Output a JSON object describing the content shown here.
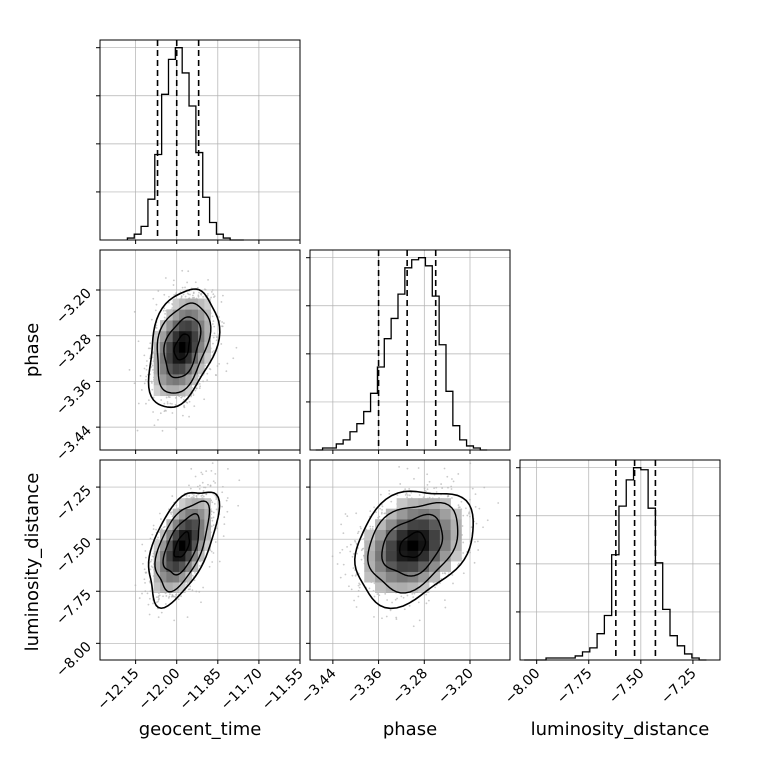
{
  "chart_data": {
    "type": "corner",
    "parameters": [
      "geocent_time",
      "phase",
      "luminosity_distance"
    ],
    "axes": {
      "geocent_time": {
        "range": [
          -12.28,
          -11.55
        ],
        "ticks": [
          -12.15,
          -12.0,
          -11.85,
          -11.7,
          -11.55
        ],
        "tick_labels": [
          "−12.15",
          "−12.00",
          "−11.85",
          "−11.70",
          "−11.55"
        ]
      },
      "phase": {
        "range": [
          -3.48,
          -3.13
        ],
        "ticks": [
          -3.44,
          -3.36,
          -3.28,
          -3.2
        ],
        "tick_labels": [
          "−3.44",
          "−3.36",
          "−3.28",
          "−3.20"
        ]
      },
      "luminosity_distance": {
        "range": [
          -8.08,
          -7.12
        ],
        "ticks": [
          -8.0,
          -7.75,
          -7.5,
          -7.25
        ],
        "tick_labels": [
          "−8.00",
          "−7.75",
          "−7.50",
          "−7.25"
        ]
      }
    },
    "histograms": [
      {
        "param": "geocent_time",
        "bin_edges": [
          -12.18,
          -12.155,
          -12.13,
          -12.105,
          -12.08,
          -12.055,
          -12.03,
          -12.005,
          -11.98,
          -11.955,
          -11.93,
          -11.905,
          -11.88,
          -11.855,
          -11.83,
          -11.805,
          -11.78,
          -11.755
        ],
        "counts": [
          1,
          3,
          7,
          21,
          44,
          75,
          93,
          99,
          86,
          69,
          45,
          22,
          9,
          3,
          1,
          0,
          0
        ],
        "quantiles": [
          -12.07,
          -12.0,
          -11.92
        ]
      },
      {
        "param": "phase",
        "bin_edges": [
          -3.47,
          -3.458,
          -3.446,
          -3.434,
          -3.422,
          -3.41,
          -3.398,
          -3.386,
          -3.374,
          -3.362,
          -3.35,
          -3.338,
          -3.326,
          -3.314,
          -3.302,
          -3.29,
          -3.278,
          -3.266,
          -3.254,
          -3.242,
          -3.23,
          -3.218,
          -3.206,
          -3.194,
          -3.182,
          -3.17
        ],
        "counts": [
          0,
          1,
          1,
          3,
          5,
          9,
          13,
          19,
          28,
          41,
          55,
          65,
          77,
          90,
          94,
          95,
          91,
          76,
          52,
          29,
          12,
          5,
          2,
          1,
          0
        ],
        "quantiles": [
          -3.36,
          -3.31,
          -3.26
        ]
      },
      {
        "param": "luminosity_distance",
        "bin_edges": [
          -8.06,
          -8.025,
          -7.99,
          -7.955,
          -7.92,
          -7.885,
          -7.85,
          -7.815,
          -7.78,
          -7.745,
          -7.71,
          -7.675,
          -7.64,
          -7.605,
          -7.57,
          -7.535,
          -7.5,
          -7.465,
          -7.43,
          -7.395,
          -7.36,
          -7.325,
          -7.29,
          -7.255,
          -7.22,
          -7.185
        ],
        "counts": [
          0,
          0,
          0,
          1,
          1,
          1,
          1,
          2,
          4,
          6,
          13,
          22,
          52,
          76,
          89,
          95,
          94,
          75,
          48,
          25,
          12,
          7,
          3,
          1,
          0
        ],
        "quantiles": [
          -7.62,
          -7.53,
          -7.43
        ]
      }
    ],
    "joint_distributions": [
      {
        "x": "geocent_time",
        "y": "phase",
        "center": [
          -11.98,
          -3.3
        ],
        "sigma": [
          0.055,
          0.045
        ],
        "correlation": 0.35,
        "contour_levels": [
          0.5,
          1.18,
          1.75,
          2.3
        ]
      },
      {
        "x": "geocent_time",
        "y": "luminosity_distance",
        "center": [
          -11.98,
          -7.53
        ],
        "sigma": [
          0.055,
          0.12
        ],
        "correlation": 0.55,
        "contour_levels": [
          0.5,
          1.18,
          1.75,
          2.3
        ]
      },
      {
        "x": "phase",
        "y": "luminosity_distance",
        "center": [
          -3.3,
          -7.53
        ],
        "sigma": [
          0.045,
          0.12
        ],
        "correlation": 0.3,
        "contour_levels": [
          0.5,
          1.18,
          1.75,
          2.3
        ]
      }
    ],
    "grid": true,
    "colors": {
      "line": "#000000",
      "grid": "#b0b0b0",
      "scatter": "#b4b4b4"
    }
  },
  "labels": {
    "x_bottom": [
      "geocent_time",
      "phase",
      "luminosity_distance"
    ],
    "y_left": [
      "",
      "phase",
      "luminosity_distance"
    ]
  }
}
